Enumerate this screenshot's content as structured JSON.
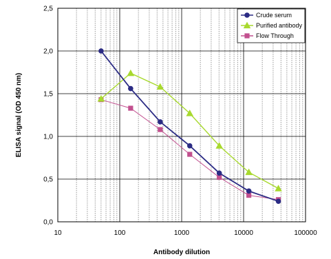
{
  "chart_data": {
    "type": "line",
    "xlabel": "Antibody dilution",
    "ylabel": "ELISA signal (OD 450 nm)",
    "x_scale": "log",
    "xlim": [
      10,
      100000
    ],
    "ylim": [
      0,
      2.5
    ],
    "grid": true,
    "legend_position": "top-right",
    "x_ticks": [
      {
        "value": 10,
        "label": "10"
      },
      {
        "value": 100,
        "label": "100"
      },
      {
        "value": 1000,
        "label": "1000"
      },
      {
        "value": 10000,
        "label": "10000"
      },
      {
        "value": 100000,
        "label": "100000"
      }
    ],
    "y_ticks": [
      {
        "value": 0,
        "label": "0,0"
      },
      {
        "value": 0.5,
        "label": "0,5"
      },
      {
        "value": 1.0,
        "label": "1,0"
      },
      {
        "value": 1.5,
        "label": "1,5"
      },
      {
        "value": 2.0,
        "label": "2,0"
      },
      {
        "value": 2.5,
        "label": "2,5"
      }
    ],
    "x": [
      50,
      150,
      450,
      1350,
      4050,
      12150,
      36450
    ],
    "series": [
      {
        "name": "Crude serum",
        "color": "#2b2b84",
        "marker": "circle",
        "values": [
          2.0,
          1.56,
          1.17,
          0.89,
          0.57,
          0.36,
          0.24
        ]
      },
      {
        "name": "Purified antibody",
        "color": "#a8d92e",
        "marker": "triangle",
        "values": [
          1.44,
          1.74,
          1.58,
          1.27,
          0.89,
          0.58,
          0.39
        ]
      },
      {
        "name": "Flow Through",
        "color": "#c2508f",
        "marker": "square",
        "values": [
          1.43,
          1.33,
          1.08,
          0.79,
          0.52,
          0.31,
          0.26
        ]
      }
    ]
  }
}
